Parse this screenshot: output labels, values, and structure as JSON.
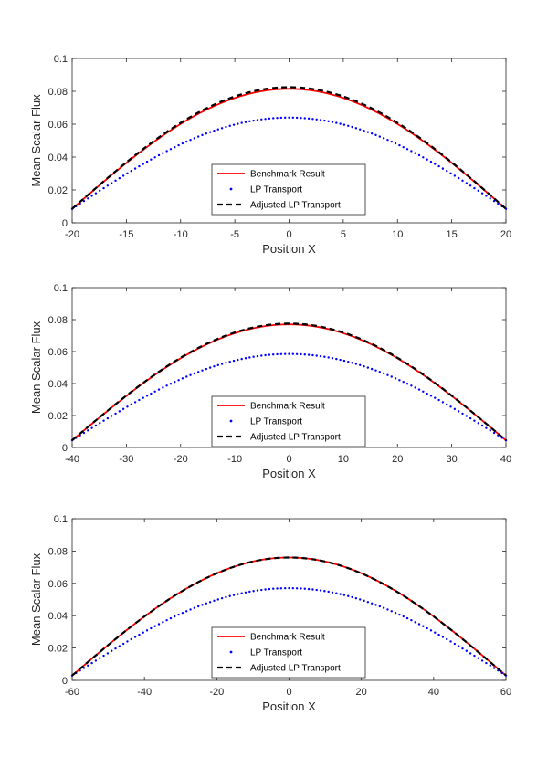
{
  "chart_data": [
    {
      "type": "line",
      "xlabel": "Position X",
      "ylabel": "Mean Scalar Flux",
      "xlim": [
        -20,
        20
      ],
      "ylim": [
        0,
        0.1
      ],
      "xticks": [
        -20,
        -15,
        -10,
        -5,
        0,
        5,
        10,
        15,
        20
      ],
      "xtick_labels": [
        "-20",
        "-15",
        "-10",
        "-5",
        "0",
        "5",
        "10",
        "15",
        "20"
      ],
      "yticks": [
        0,
        0.02,
        0.04,
        0.06,
        0.08,
        0.1
      ],
      "ytick_labels": [
        "0",
        "0.02",
        "0.04",
        "0.06",
        "0.08",
        "0.1"
      ],
      "legend_position": "lower-center",
      "series": [
        {
          "name": "Benchmark Result",
          "style": "solid",
          "color": "#ff0000",
          "peak": 0.0815,
          "edge": 0.0085
        },
        {
          "name": "LP Transport",
          "style": "dotted",
          "color": "#0000ff",
          "peak": 0.064,
          "edge": 0.0085
        },
        {
          "name": "Adjusted LP Transport",
          "style": "dashed",
          "color": "#000000",
          "peak": 0.0825,
          "edge": 0.0085
        }
      ]
    },
    {
      "type": "line",
      "xlabel": "Position X",
      "ylabel": "Mean Scalar Flux",
      "xlim": [
        -40,
        40
      ],
      "ylim": [
        0,
        0.1
      ],
      "xticks": [
        -40,
        -30,
        -20,
        -10,
        0,
        10,
        20,
        30,
        40
      ],
      "xtick_labels": [
        "-40",
        "-30",
        "-20",
        "-10",
        "0",
        "10",
        "20",
        "30",
        "40"
      ],
      "yticks": [
        0,
        0.02,
        0.04,
        0.06,
        0.08,
        0.1
      ],
      "ytick_labels": [
        "0",
        "0.02",
        "0.04",
        "0.06",
        "0.08",
        "0.1"
      ],
      "legend_position": "lower-center",
      "series": [
        {
          "name": "Benchmark Result",
          "style": "solid",
          "color": "#ff0000",
          "peak": 0.077,
          "edge": 0.0045
        },
        {
          "name": "LP Transport",
          "style": "dotted",
          "color": "#0000ff",
          "peak": 0.0585,
          "edge": 0.0045
        },
        {
          "name": "Adjusted LP Transport",
          "style": "dashed",
          "color": "#000000",
          "peak": 0.0775,
          "edge": 0.0045
        }
      ]
    },
    {
      "type": "line",
      "xlabel": "Position X",
      "ylabel": "Mean Scalar Flux",
      "xlim": [
        -60,
        60
      ],
      "ylim": [
        0,
        0.1
      ],
      "xticks": [
        -60,
        -40,
        -20,
        0,
        20,
        40,
        60
      ],
      "xtick_labels": [
        "-60",
        "-40",
        "-20",
        "0",
        "20",
        "40",
        "60"
      ],
      "yticks": [
        0,
        0.02,
        0.04,
        0.06,
        0.08,
        0.1
      ],
      "ytick_labels": [
        "0",
        "0.02",
        "0.04",
        "0.06",
        "0.08",
        "0.1"
      ],
      "legend_position": "lower-center",
      "series": [
        {
          "name": "Benchmark Result",
          "style": "solid",
          "color": "#ff0000",
          "peak": 0.076,
          "edge": 0.003
        },
        {
          "name": "LP Transport",
          "style": "dotted",
          "color": "#0000ff",
          "peak": 0.057,
          "edge": 0.003
        },
        {
          "name": "Adjusted LP Transport",
          "style": "dashed",
          "color": "#000000",
          "peak": 0.076,
          "edge": 0.003
        }
      ]
    }
  ]
}
